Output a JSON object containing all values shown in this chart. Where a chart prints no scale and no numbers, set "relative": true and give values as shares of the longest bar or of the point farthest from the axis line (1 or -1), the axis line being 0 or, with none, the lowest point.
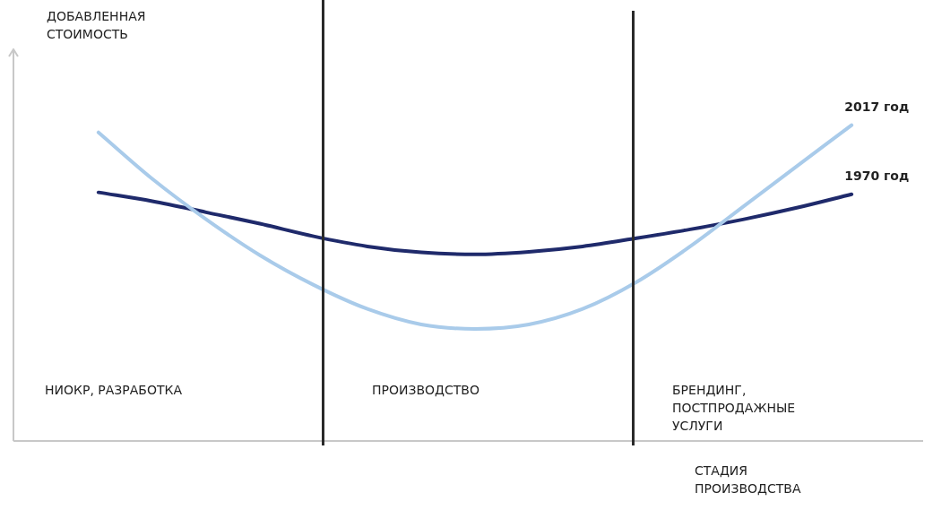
{
  "chart_data": {
    "type": "line",
    "relative": true,
    "xlabel": "СТАДИЯ ПРОИЗВОДСТВА",
    "categories": [
      null,
      null,
      null,
      null,
      null,
      null,
      null,
      null,
      null,
      null,
      null,
      null,
      null,
      null,
      null
    ],
    "series": [
      {
        "name": "2017 год",
        "color": "#a9cbea",
        "values": [
          0.977,
          0.83,
          0.702,
          0.588,
          0.494,
          0.418,
          0.369,
          0.355,
          0.369,
          0.418,
          0.503,
          0.616,
          0.744,
          0.872,
          1
        ]
      },
      {
        "name": "1970 год",
        "color": "#1f2a6b",
        "values": [
          0.787,
          0.759,
          0.724,
          0.688,
          0.648,
          0.616,
          0.597,
          0.591,
          0.599,
          0.616,
          0.642,
          0.67,
          0.702,
          0.739,
          0.781
        ]
      }
    ],
    "annotations": [
      "ДОБАВЛЕННАЯ СТОИМОСТЬ",
      "НИОКР, РАЗРАБОТКА",
      "ПРОИЗВОДСТВО",
      "БРЕНДИНГ, ПОСТПРОДАЖНЫЕ УСЛУГИ"
    ],
    "legend": false,
    "marker": "none",
    "line_style": "solid"
  }
}
